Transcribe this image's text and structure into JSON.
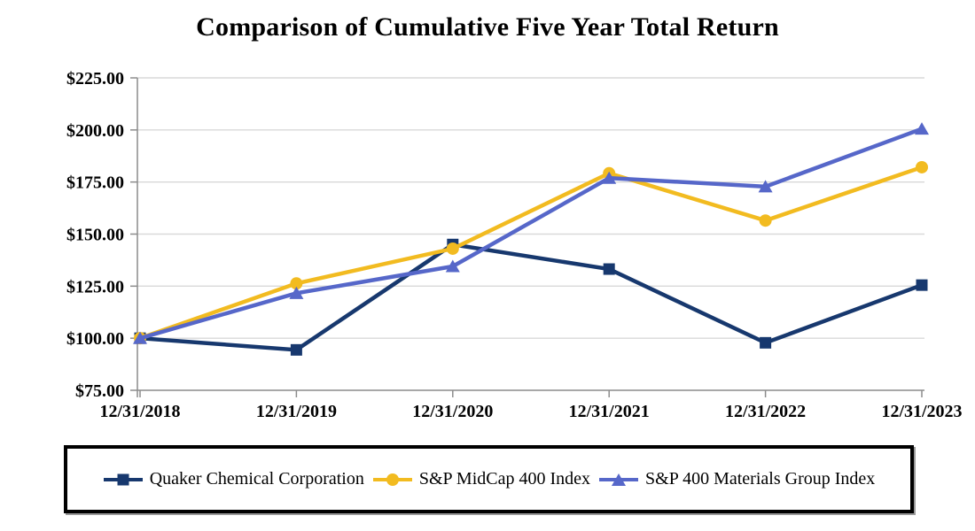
{
  "title": "Comparison of Cumulative Five Year Total Return",
  "chart_data": {
    "type": "line",
    "categories": [
      "12/31/2018",
      "12/31/2019",
      "12/31/2020",
      "12/31/2021",
      "12/31/2022",
      "12/31/2023"
    ],
    "series": [
      {
        "name": "Quaker Chemical Corporation",
        "color": "#17386E",
        "marker": "square",
        "values": [
          100.0,
          94.4,
          145.0,
          133.2,
          97.8,
          125.5
        ]
      },
      {
        "name": "S&P MidCap 400 Index",
        "color": "#F2BB20",
        "marker": "circle",
        "values": [
          100.0,
          126.3,
          143.0,
          179.2,
          156.5,
          182.1
        ]
      },
      {
        "name": "S&P 400 Materials Group Index",
        "color": "#5667C9",
        "marker": "triangle",
        "values": [
          100.0,
          121.6,
          134.5,
          176.9,
          172.8,
          200.5
        ]
      }
    ],
    "ylim": [
      75,
      225
    ],
    "y_ticks": [
      {
        "value": 75,
        "label": "$75.00"
      },
      {
        "value": 100,
        "label": "$100.00"
      },
      {
        "value": 125,
        "label": "$125.00"
      },
      {
        "value": 150,
        "label": "$150.00"
      },
      {
        "value": 175,
        "label": "$175.00"
      },
      {
        "value": 200,
        "label": "$200.00"
      },
      {
        "value": 225,
        "label": "$225.00"
      }
    ],
    "grid": "horizontal",
    "legend_position": "bottom",
    "colors": {
      "gridline": "#D9D9D9",
      "axis": "#8C8C8C",
      "text": "#000000"
    }
  }
}
